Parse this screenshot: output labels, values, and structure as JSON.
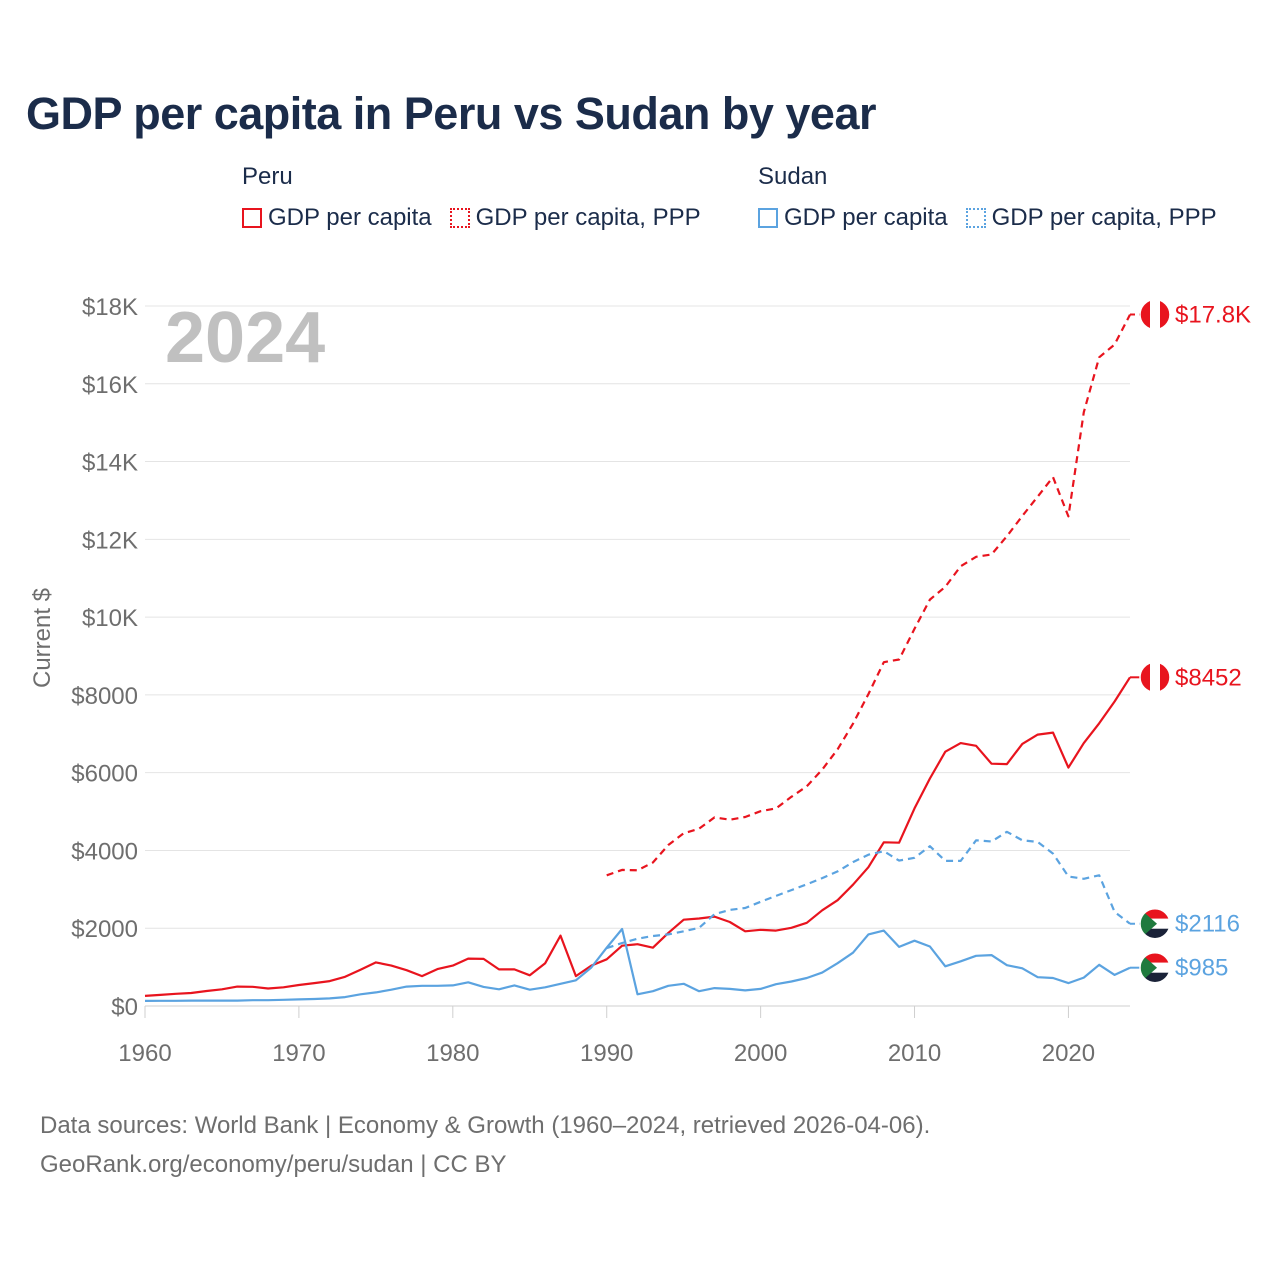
{
  "title": "GDP per capita in Peru vs Sudan by year",
  "legend": {
    "groups": [
      {
        "name": "Peru",
        "color": "#e8141e",
        "items": [
          {
            "label": "GDP per capita",
            "style": "solid"
          },
          {
            "label": "GDP per capita, PPP",
            "style": "dotted"
          }
        ]
      },
      {
        "name": "Sudan",
        "color": "#5ba3e0",
        "items": [
          {
            "label": "GDP per capita",
            "style": "solid"
          },
          {
            "label": "GDP per capita, PPP",
            "style": "dotted"
          }
        ]
      }
    ]
  },
  "footer": {
    "line1": "Data sources: World Bank | Economy & Growth (1960–2024, retrieved 2026-04-06).",
    "line2": "GeoRank.org/economy/peru/sudan | CC BY"
  },
  "chart_data": {
    "type": "line",
    "title": "GDP per capita in Peru vs Sudan by year",
    "year_marker": "2024",
    "ylabel": "Current $",
    "xlim": [
      1960,
      2024
    ],
    "ylim": [
      0,
      18000
    ],
    "x_ticks": [
      1960,
      1970,
      1980,
      1990,
      2000,
      2010,
      2020
    ],
    "y_ticks": [
      {
        "value": 0,
        "label": "$0"
      },
      {
        "value": 2000,
        "label": "$2000"
      },
      {
        "value": 4000,
        "label": "$4000"
      },
      {
        "value": 6000,
        "label": "$6000"
      },
      {
        "value": 8000,
        "label": "$8000"
      },
      {
        "value": 10000,
        "label": "$10K"
      },
      {
        "value": 12000,
        "label": "$12K"
      },
      {
        "value": 14000,
        "label": "$14K"
      },
      {
        "value": 16000,
        "label": "$16K"
      },
      {
        "value": 18000,
        "label": "$18K"
      }
    ],
    "grid": true,
    "series": [
      {
        "name": "Peru GDP per capita",
        "country": "Peru",
        "color": "#e8141e",
        "dash": false,
        "end_label": "$8452",
        "x": [
          1960,
          1961,
          1962,
          1963,
          1964,
          1965,
          1966,
          1967,
          1968,
          1969,
          1970,
          1971,
          1972,
          1973,
          1974,
          1975,
          1976,
          1977,
          1978,
          1979,
          1980,
          1981,
          1982,
          1983,
          1984,
          1985,
          1986,
          1987,
          1988,
          1989,
          1990,
          1991,
          1992,
          1993,
          1994,
          1995,
          1996,
          1997,
          1998,
          1999,
          2000,
          2001,
          2002,
          2003,
          2004,
          2005,
          2006,
          2007,
          2008,
          2009,
          2010,
          2011,
          2012,
          2013,
          2014,
          2015,
          2016,
          2017,
          2018,
          2019,
          2020,
          2021,
          2022,
          2023,
          2024
        ],
        "values": [
          260,
          285,
          315,
          335,
          385,
          430,
          500,
          495,
          450,
          480,
          540,
          590,
          640,
          750,
          930,
          1120,
          1040,
          920,
          770,
          950,
          1040,
          1220,
          1210,
          940,
          940,
          790,
          1100,
          1810,
          770,
          1040,
          1200,
          1550,
          1590,
          1500,
          1880,
          2220,
          2250,
          2300,
          2160,
          1920,
          1960,
          1940,
          2010,
          2140,
          2460,
          2720,
          3120,
          3570,
          4210,
          4200,
          5080,
          5850,
          6540,
          6760,
          6690,
          6230,
          6220,
          6740,
          6980,
          7030,
          6130,
          6760,
          7270,
          7830,
          8452
        ]
      },
      {
        "name": "Peru GDP per capita, PPP",
        "country": "Peru",
        "color": "#e8141e",
        "dash": true,
        "end_label": "$17.8K",
        "x": [
          1990,
          1991,
          1992,
          1993,
          1994,
          1995,
          1996,
          1997,
          1998,
          1999,
          2000,
          2001,
          2002,
          2003,
          2004,
          2005,
          2006,
          2007,
          2008,
          2009,
          2010,
          2011,
          2012,
          2013,
          2014,
          2015,
          2016,
          2017,
          2018,
          2019,
          2020,
          2021,
          2022,
          2023,
          2024
        ],
        "values": [
          3360,
          3500,
          3490,
          3690,
          4140,
          4440,
          4560,
          4850,
          4790,
          4860,
          5010,
          5080,
          5380,
          5650,
          6080,
          6600,
          7260,
          8020,
          8840,
          8910,
          9700,
          10450,
          10780,
          11310,
          11550,
          11610,
          12080,
          12600,
          13100,
          13600,
          12590,
          15270,
          16680,
          17010,
          17780
        ]
      },
      {
        "name": "Sudan GDP per capita",
        "country": "Sudan",
        "color": "#5ba3e0",
        "dash": false,
        "end_label": "$985",
        "x": [
          1960,
          1961,
          1962,
          1963,
          1964,
          1965,
          1966,
          1967,
          1968,
          1969,
          1970,
          1971,
          1972,
          1973,
          1974,
          1975,
          1976,
          1977,
          1978,
          1979,
          1980,
          1981,
          1982,
          1983,
          1984,
          1985,
          1986,
          1987,
          1988,
          1989,
          1990,
          1991,
          1992,
          1993,
          1994,
          1995,
          1996,
          1997,
          1998,
          1999,
          2000,
          2001,
          2002,
          2003,
          2004,
          2005,
          2006,
          2007,
          2008,
          2009,
          2010,
          2011,
          2012,
          2013,
          2014,
          2015,
          2016,
          2017,
          2018,
          2019,
          2020,
          2021,
          2022,
          2023,
          2024
        ],
        "values": [
          130,
          135,
          135,
          140,
          140,
          140,
          140,
          150,
          150,
          160,
          170,
          180,
          195,
          230,
          300,
          350,
          420,
          500,
          520,
          520,
          530,
          610,
          490,
          430,
          530,
          420,
          480,
          570,
          660,
          990,
          1500,
          1980,
          300,
          380,
          520,
          570,
          380,
          460,
          440,
          400,
          440,
          560,
          630,
          720,
          860,
          1100,
          1370,
          1840,
          1940,
          1520,
          1680,
          1530,
          1020,
          1150,
          1290,
          1310,
          1050,
          970,
          740,
          720,
          590,
          730,
          1060,
          800,
          985
        ]
      },
      {
        "name": "Sudan GDP per capita, PPP",
        "country": "Sudan",
        "color": "#5ba3e0",
        "dash": true,
        "end_label": "$2116",
        "x": [
          1990,
          1991,
          1992,
          1993,
          1994,
          1995,
          1996,
          1997,
          1998,
          1999,
          2000,
          2001,
          2002,
          2003,
          2004,
          2005,
          2006,
          2007,
          2008,
          2009,
          2010,
          2011,
          2012,
          2013,
          2014,
          2015,
          2016,
          2017,
          2018,
          2019,
          2020,
          2021,
          2022,
          2023,
          2024
        ],
        "values": [
          1490,
          1620,
          1730,
          1800,
          1840,
          1920,
          2010,
          2360,
          2470,
          2520,
          2680,
          2830,
          2980,
          3130,
          3290,
          3460,
          3700,
          3890,
          3980,
          3740,
          3810,
          4110,
          3730,
          3730,
          4260,
          4230,
          4480,
          4260,
          4220,
          3920,
          3330,
          3270,
          3360,
          2420,
          2116
        ]
      }
    ]
  }
}
